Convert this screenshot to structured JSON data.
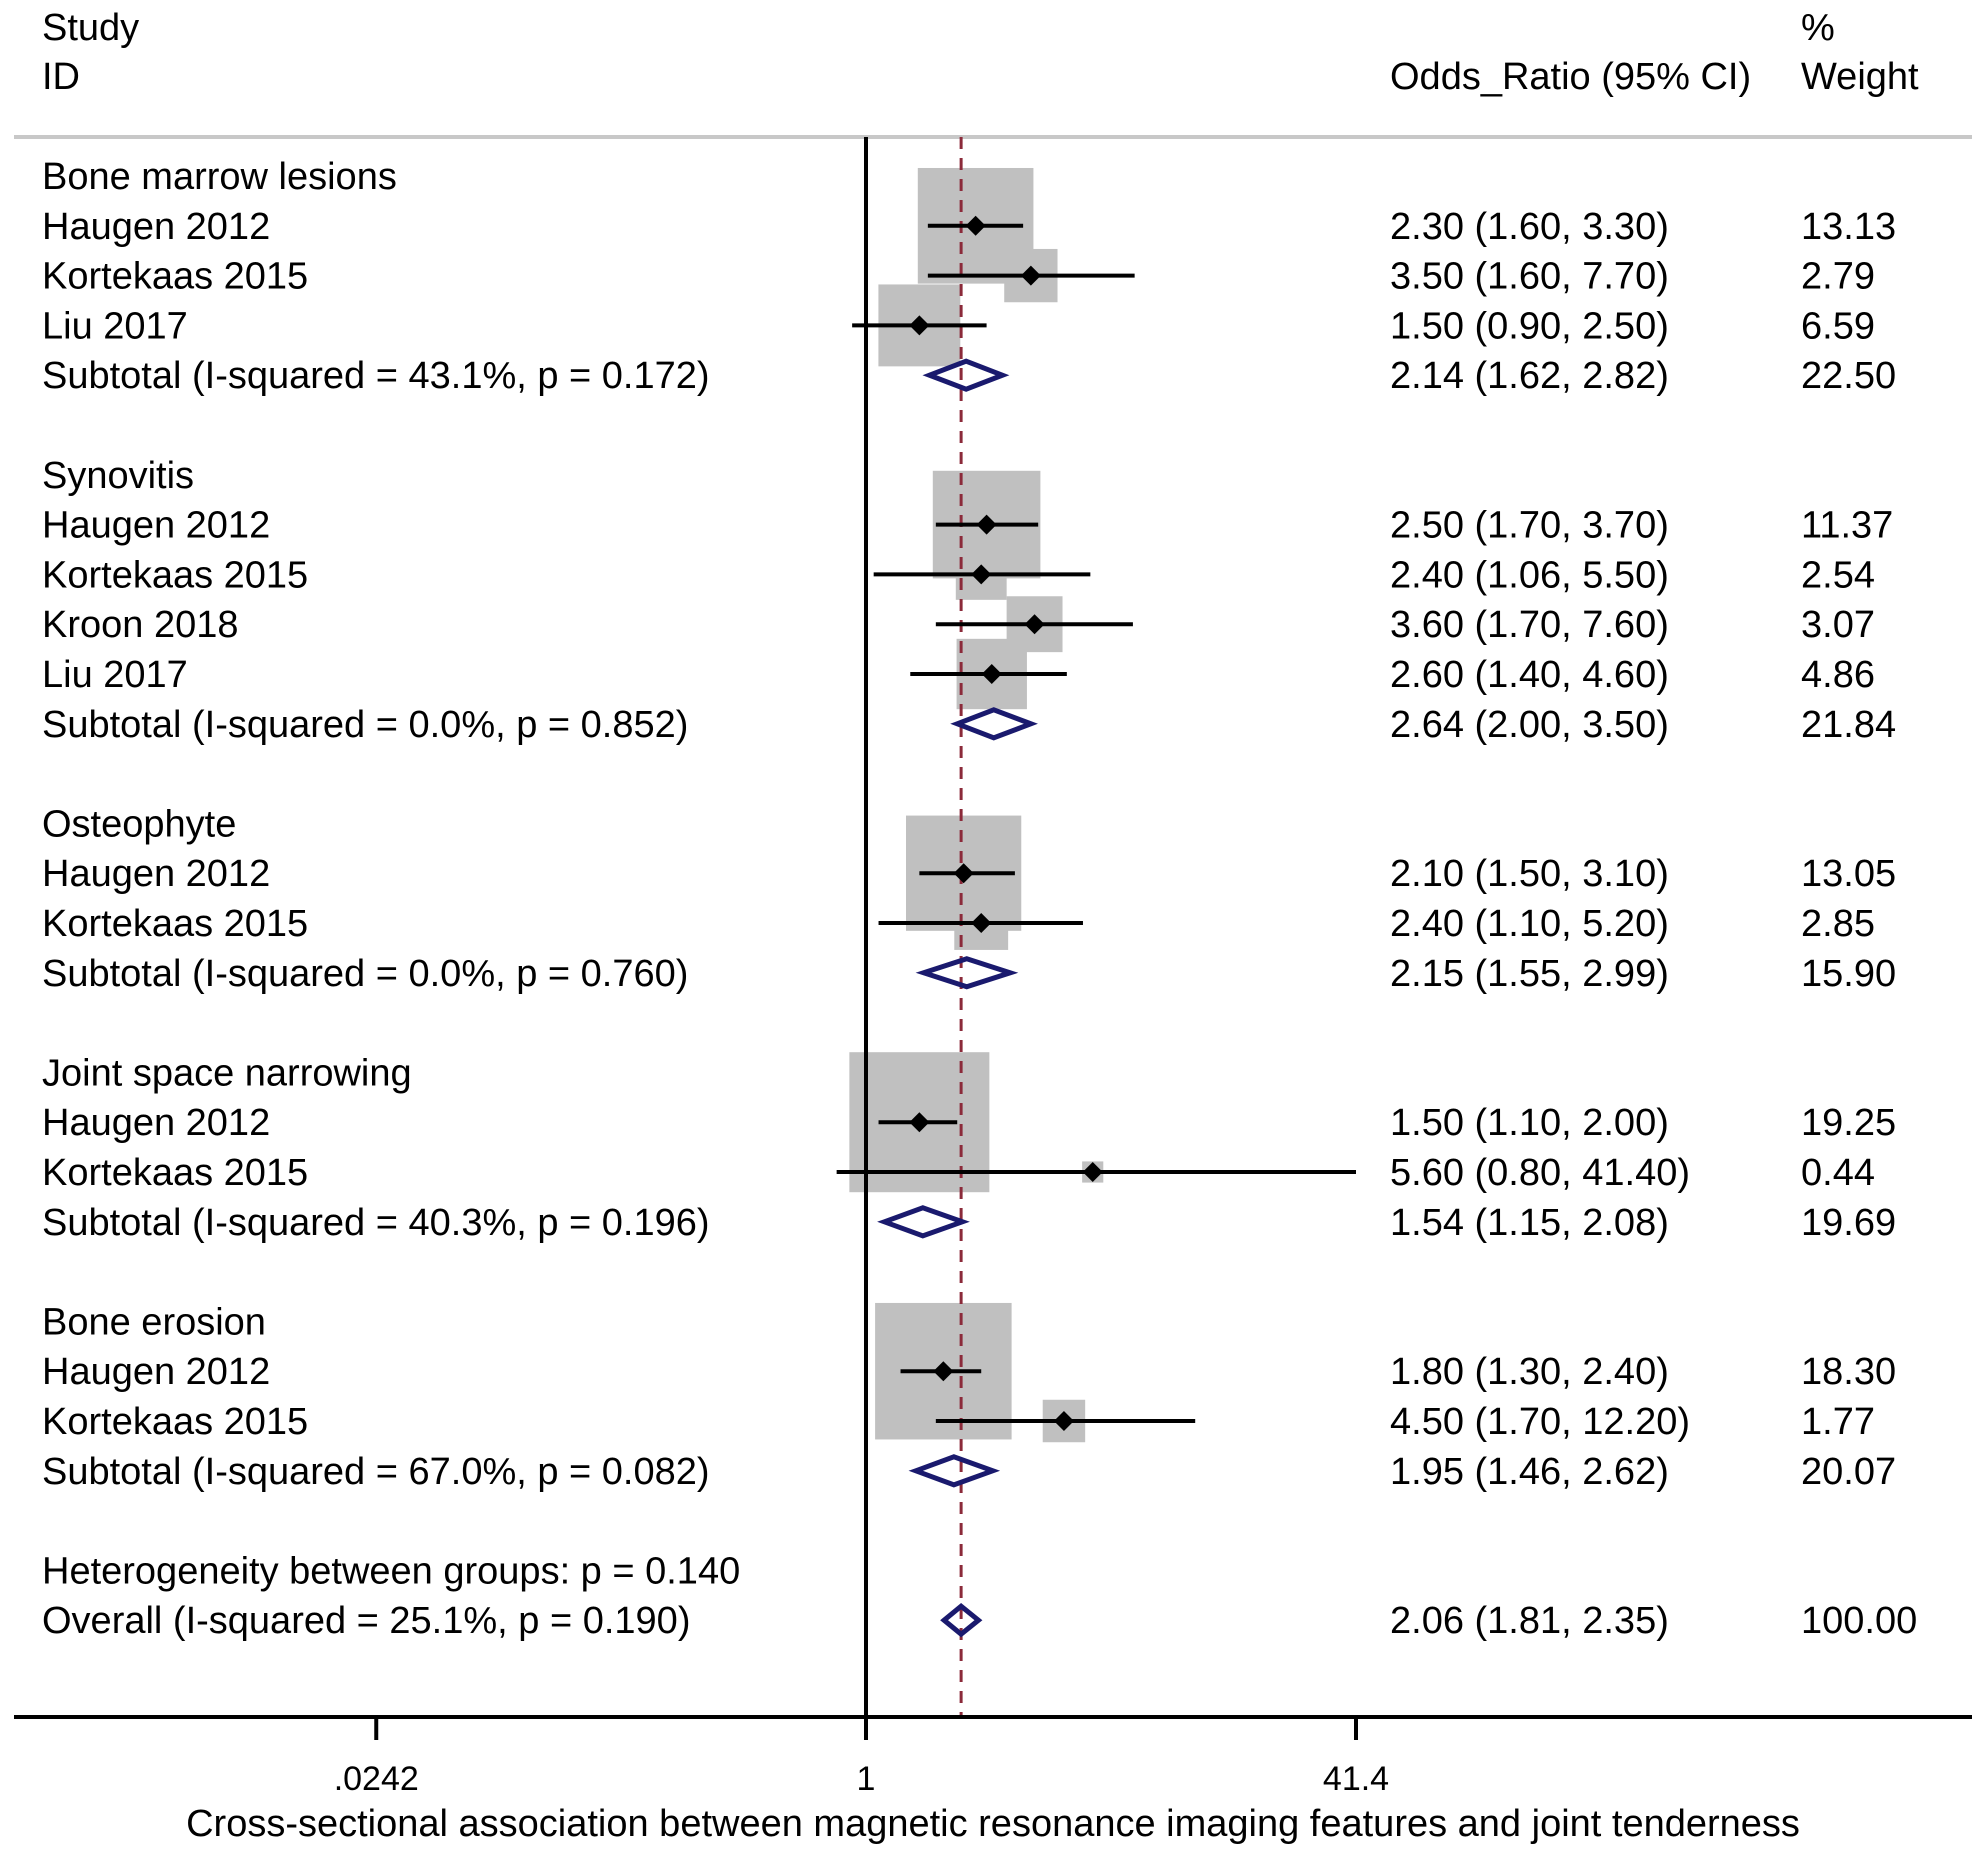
{
  "chart_data": {
    "type": "forest",
    "scale": "log",
    "header": {
      "study_line1": "Study",
      "study_line2": "ID",
      "or_label": "Odds_Ratio (95% CI)",
      "weight_line1": "%",
      "weight_line2": "Weight"
    },
    "xlabel": "Cross-sectional association between magnetic resonance imaging features and joint tenderness",
    "ticks": [
      {
        "value": 0.0242,
        "label": ".0242"
      },
      {
        "value": 1,
        "label": "1"
      },
      {
        "value": 41.4,
        "label": "41.4"
      }
    ],
    "xlim": [
      0.0242,
      41.4
    ],
    "null_line": 1,
    "pooled_line": 2.06,
    "groups": [
      {
        "name": "Bone marrow lesions",
        "studies": [
          {
            "label": "Haugen 2012",
            "or": 2.3,
            "lo": 1.6,
            "hi": 3.3,
            "ci_text": "2.30 (1.60, 3.30)",
            "weight": "13.13"
          },
          {
            "label": "Kortekaas 2015",
            "or": 3.5,
            "lo": 1.6,
            "hi": 7.7,
            "ci_text": "3.50 (1.60, 7.70)",
            "weight": "2.79"
          },
          {
            "label": "Liu 2017",
            "or": 1.5,
            "lo": 0.9,
            "hi": 2.5,
            "ci_text": "1.50 (0.90, 2.50)",
            "weight": "6.59"
          }
        ],
        "subtotal": {
          "label": "Subtotal  (I-squared = 43.1%, p = 0.172)",
          "or": 2.14,
          "lo": 1.62,
          "hi": 2.82,
          "ci_text": "2.14 (1.62, 2.82)",
          "weight": "22.50"
        }
      },
      {
        "name": "Synovitis",
        "studies": [
          {
            "label": "Haugen 2012",
            "or": 2.5,
            "lo": 1.7,
            "hi": 3.7,
            "ci_text": "2.50 (1.70, 3.70)",
            "weight": "11.37"
          },
          {
            "label": "Kortekaas 2015",
            "or": 2.4,
            "lo": 1.06,
            "hi": 5.5,
            "ci_text": "2.40 (1.06, 5.50)",
            "weight": "2.54"
          },
          {
            "label": "Kroon 2018",
            "or": 3.6,
            "lo": 1.7,
            "hi": 7.6,
            "ci_text": "3.60 (1.70, 7.60)",
            "weight": "3.07"
          },
          {
            "label": "Liu 2017",
            "or": 2.6,
            "lo": 1.4,
            "hi": 4.6,
            "ci_text": "2.60 (1.40, 4.60)",
            "weight": "4.86"
          }
        ],
        "subtotal": {
          "label": "Subtotal  (I-squared = 0.0%, p = 0.852)",
          "or": 2.64,
          "lo": 2.0,
          "hi": 3.5,
          "ci_text": "2.64 (2.00, 3.50)",
          "weight": "21.84"
        }
      },
      {
        "name": "Osteophyte",
        "studies": [
          {
            "label": "Haugen 2012",
            "or": 2.1,
            "lo": 1.5,
            "hi": 3.1,
            "ci_text": "2.10 (1.50, 3.10)",
            "weight": "13.05"
          },
          {
            "label": "Kortekaas 2015",
            "or": 2.4,
            "lo": 1.1,
            "hi": 5.2,
            "ci_text": "2.40 (1.10, 5.20)",
            "weight": "2.85"
          }
        ],
        "subtotal": {
          "label": "Subtotal  (I-squared = 0.0%, p = 0.760)",
          "or": 2.15,
          "lo": 1.55,
          "hi": 2.99,
          "ci_text": "2.15 (1.55, 2.99)",
          "weight": "15.90"
        }
      },
      {
        "name": "Joint space narrowing",
        "studies": [
          {
            "label": "Haugen 2012",
            "or": 1.5,
            "lo": 1.1,
            "hi": 2.0,
            "ci_text": "1.50 (1.10, 2.00)",
            "weight": "19.25"
          },
          {
            "label": "Kortekaas 2015",
            "or": 5.6,
            "lo": 0.8,
            "hi": 41.4,
            "ci_text": "5.60 (0.80, 41.40)",
            "weight": "0.44"
          }
        ],
        "subtotal": {
          "label": "Subtotal  (I-squared = 40.3%, p = 0.196)",
          "or": 1.54,
          "lo": 1.15,
          "hi": 2.08,
          "ci_text": "1.54 (1.15, 2.08)",
          "weight": "19.69"
        }
      },
      {
        "name": "Bone erosion",
        "studies": [
          {
            "label": "Haugen 2012",
            "or": 1.8,
            "lo": 1.3,
            "hi": 2.4,
            "ci_text": "1.80 (1.30, 2.40)",
            "weight": "18.30"
          },
          {
            "label": "Kortekaas 2015",
            "or": 4.5,
            "lo": 1.7,
            "hi": 12.2,
            "ci_text": "4.50 (1.70, 12.20)",
            "weight": "1.77"
          }
        ],
        "subtotal": {
          "label": "Subtotal  (I-squared = 67.0%, p = 0.082)",
          "or": 1.95,
          "lo": 1.46,
          "hi": 2.62,
          "ci_text": "1.95 (1.46, 2.62)",
          "weight": "20.07"
        }
      }
    ],
    "heterogeneity": "Heterogeneity between groups: p = 0.140",
    "overall": {
      "label": "Overall  (I-squared = 25.1%, p = 0.190)",
      "or": 2.06,
      "lo": 1.81,
      "hi": 2.35,
      "ci_text": "2.06 (1.81, 2.35)",
      "weight": "100.00"
    },
    "colors": {
      "diamond": "#1a1a6e",
      "pooled_line": "#8b2a3a",
      "weight_box": "#c0c0c0",
      "axis": "#000000",
      "header_rule": "#c8c8c8"
    }
  }
}
